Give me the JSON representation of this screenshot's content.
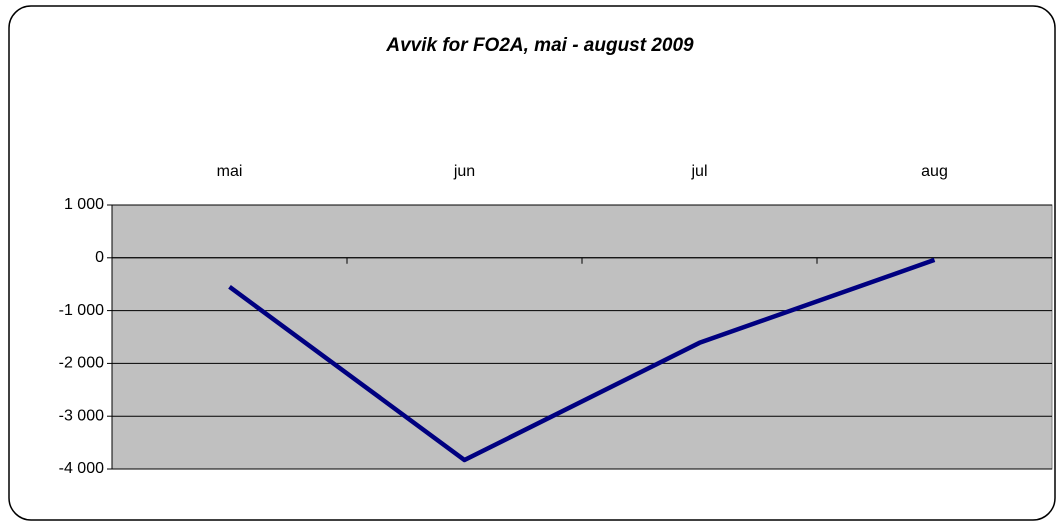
{
  "chart_data": {
    "type": "line",
    "title": "Avvik for FO2A, mai - august 2009",
    "categories": [
      "mai",
      "jun",
      "jul",
      "aug"
    ],
    "series": [
      {
        "name": "FO2A",
        "color": "#000080",
        "values": [
          -550,
          -3830,
          -1610,
          -40
        ]
      }
    ],
    "ylim": [
      -4000,
      1000
    ],
    "yticks": [
      {
        "value": -4000,
        "label": "-4 000"
      },
      {
        "value": -3000,
        "label": "-3 000"
      },
      {
        "value": -2000,
        "label": "-2 000"
      },
      {
        "value": -1000,
        "label": "-1 000"
      },
      0,
      {
        "value": 1000,
        "label": "1 000"
      }
    ],
    "grid": true,
    "plot_background": "#c0c0c0"
  }
}
